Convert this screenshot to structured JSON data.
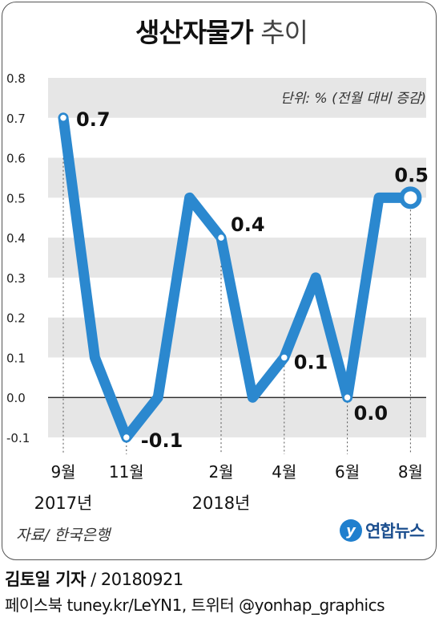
{
  "header": {
    "title_bold": "생산자물가",
    "title_light": "추이"
  },
  "chart_data": {
    "type": "line",
    "title": "생산자물가 추이",
    "unit_note": "단위: % (전월 대비 증감)",
    "x": [
      "2017-09",
      "2017-10",
      "2017-11",
      "2017-12",
      "2018-01",
      "2018-02",
      "2018-03",
      "2018-04",
      "2018-05",
      "2018-06",
      "2018-07",
      "2018-08"
    ],
    "series": [
      {
        "values": [
          0.7,
          0.1,
          -0.1,
          0.0,
          0.5,
          0.4,
          0.0,
          0.1,
          0.3,
          0.0,
          0.5,
          0.5
        ]
      }
    ],
    "yticks": [
      "0.8",
      "0.7",
      "0.6",
      "0.5",
      "0.4",
      "0.3",
      "0.2",
      "0.1",
      "0.0",
      "-0.1"
    ],
    "ylim": [
      -0.1,
      0.8
    ],
    "xtick_labels": [
      {
        "index": 0,
        "label": "9월"
      },
      {
        "index": 2,
        "label": "11월"
      },
      {
        "index": 5,
        "label": "2월"
      },
      {
        "index": 7,
        "label": "4월"
      },
      {
        "index": 9,
        "label": "6월"
      },
      {
        "index": 11,
        "label": "8월"
      }
    ],
    "year_labels": [
      {
        "index": 0,
        "label": "2017년"
      },
      {
        "index": 5,
        "label": "2018년"
      }
    ],
    "data_labels": [
      {
        "index": 0,
        "text": "0.7"
      },
      {
        "index": 2,
        "text": "-0.1"
      },
      {
        "index": 5,
        "text": "0.4"
      },
      {
        "index": 7,
        "text": "0.1"
      },
      {
        "index": 9,
        "text": "0.0"
      },
      {
        "index": 11,
        "text": "0.5"
      }
    ],
    "line_color": "#2b88cf",
    "band_color": "#e6e6e6",
    "grid": "alternating bands"
  },
  "footer": {
    "source": "자료/ 한국은행",
    "logo_text": "연합뉴스",
    "reporter": "김토일 기자",
    "date": "/ 20180921",
    "social": "페이스북 tuney.kr/LeYN1, 트위터 @yonhap_graphics"
  }
}
